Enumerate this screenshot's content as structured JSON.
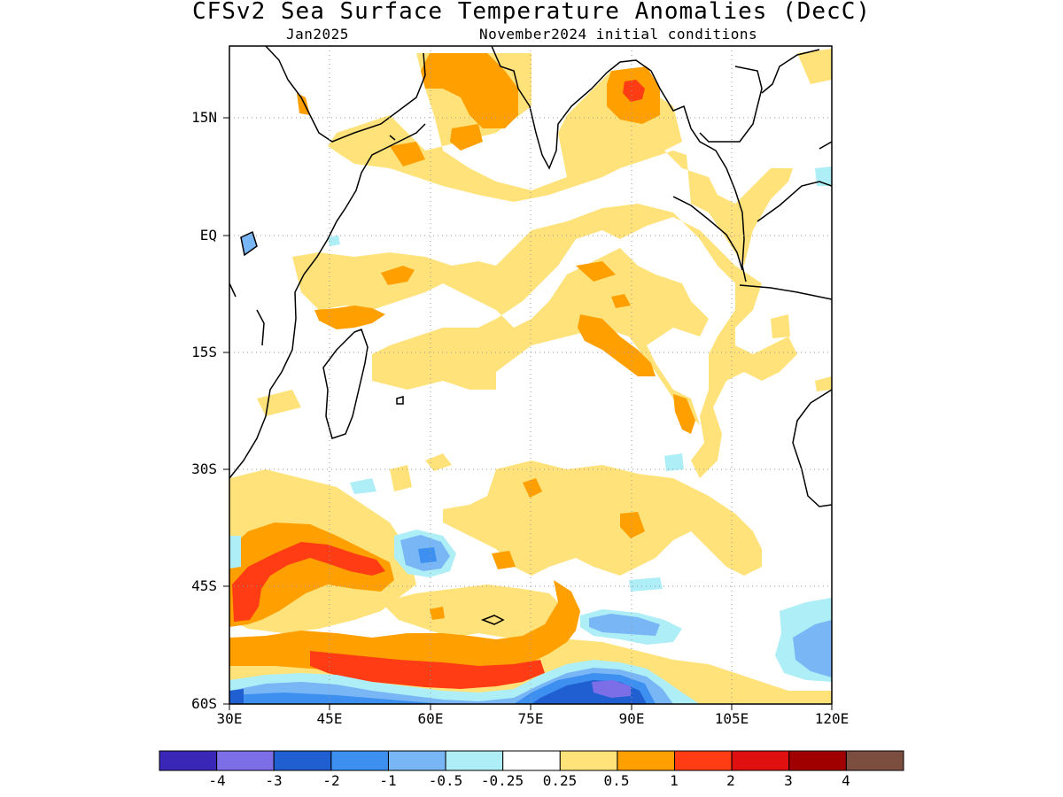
{
  "title": "CFSv2 Sea Surface Temperature Anomalies (DecC)",
  "subtitle_left": "Jan2025",
  "subtitle_right": "November2024 initial conditions",
  "lat_labels": [
    "15N",
    "EQ",
    "15S",
    "30S",
    "45S",
    "60S"
  ],
  "lon_labels": [
    "30E",
    "45E",
    "60E",
    "75E",
    "90E",
    "105E",
    "120E"
  ],
  "colorbar": {
    "labels": [
      "-4",
      "-3",
      "-2",
      "-1",
      "-0.5",
      "-0.25",
      "0.25",
      "0.5",
      "1",
      "2",
      "3",
      "4"
    ],
    "colors": [
      "#3a27b8",
      "#7c6ee6",
      "#1f5fd1",
      "#3d8ff0",
      "#78b6f5",
      "#aeeef6",
      "#ffffff",
      "#ffe27a",
      "#ffa000",
      "#ff3c14",
      "#e01010",
      "#a00000",
      "#7b4e3f"
    ]
  },
  "palette": {
    "pos_025": "#ffe27a",
    "pos_05": "#ffa000",
    "pos_1": "#ff3c14",
    "neg_025": "#aeeef6",
    "neg_05": "#78b6f5",
    "neg_1": "#3d8ff0",
    "neg_2": "#1f5fd1",
    "neg_3": "#7c6ee6"
  }
}
